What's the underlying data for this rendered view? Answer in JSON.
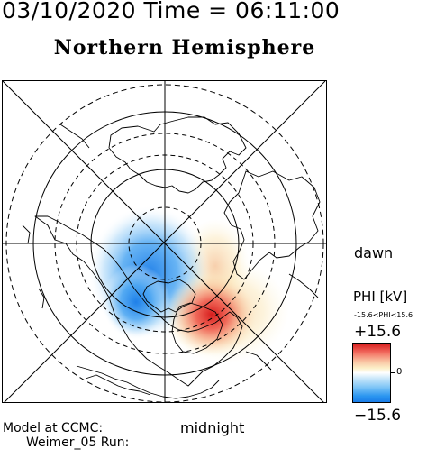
{
  "header": {
    "datetime": "03/10/2020 Time = 06:11:00",
    "title": "Northern Hemisphere"
  },
  "map": {
    "type": "polar-projection",
    "hemisphere": "north",
    "local_time_labels": {
      "dawn": "dawn",
      "midnight": "midnight"
    },
    "colors": {
      "positive": "#d71d1d",
      "negative": "#1a7de8",
      "zero": "#ffffff"
    }
  },
  "colorbar": {
    "title": "PHI [kV]",
    "range_note": "-15.6<PHI<15.6",
    "max_label": "+15.6",
    "zero_label": "0",
    "min_label": "−15.6",
    "min": -15.6,
    "max": 15.6
  },
  "footer": {
    "model_line": "Model at CCMC:",
    "run_line": "Weimer_05 Run:"
  }
}
